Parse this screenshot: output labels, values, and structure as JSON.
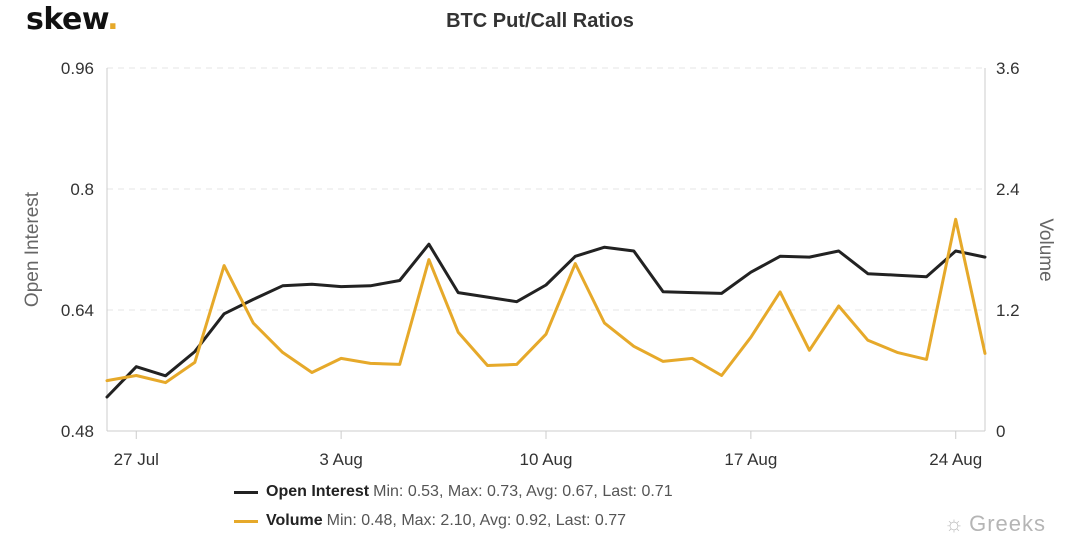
{
  "brand": {
    "logo_text": "skew",
    "logo_dot": ".",
    "watermark_text": "Greeks",
    "watermark_icon": "wechat-icon"
  },
  "colors": {
    "open_interest": "#222222",
    "volume": "#e6a92a",
    "grid": "#e6e6e6",
    "axis_text": "#333333"
  },
  "chart_data": {
    "type": "line",
    "title": "BTC Put/Call Ratios",
    "y_left": {
      "label": "Open Interest",
      "range": [
        0.48,
        0.96
      ],
      "ticks": [
        "0.48",
        "0.64",
        "0.8",
        "0.96"
      ]
    },
    "y_right": {
      "label": "Volume",
      "range": [
        0,
        3.6
      ],
      "ticks": [
        "0",
        "1.2",
        "2.4",
        "3.6"
      ]
    },
    "x_ticks": [
      {
        "label": "27 Jul",
        "day": 1
      },
      {
        "label": "3 Aug",
        "day": 8
      },
      {
        "label": "10 Aug",
        "day": 15
      },
      {
        "label": "17 Aug",
        "day": 22
      },
      {
        "label": "24 Aug",
        "day": 29
      }
    ],
    "x_range": [
      0,
      30
    ],
    "grid": true,
    "legend_position": "bottom",
    "series": [
      {
        "name": "Open Interest",
        "axis": "left",
        "stats": "Min: 0.53, Max: 0.73, Avg: 0.67, Last: 0.71",
        "values": [
          0.525,
          0.565,
          0.553,
          0.585,
          0.635,
          0.654,
          0.672,
          0.674,
          0.671,
          0.672,
          0.679,
          0.727,
          0.663,
          0.657,
          0.651,
          0.673,
          0.711,
          0.723,
          0.718,
          0.664,
          0.663,
          0.662,
          0.69,
          0.711,
          0.71,
          0.718,
          0.688,
          0.686,
          0.684,
          0.718,
          0.71
        ]
      },
      {
        "name": "Volume",
        "axis": "right",
        "stats": "Min: 0.48, Max: 2.10, Avg: 0.92, Last: 0.77",
        "values": [
          0.5,
          0.55,
          0.48,
          0.68,
          1.64,
          1.07,
          0.78,
          0.58,
          0.72,
          0.67,
          0.66,
          1.7,
          0.98,
          0.65,
          0.66,
          0.96,
          1.66,
          1.07,
          0.84,
          0.69,
          0.72,
          0.55,
          0.93,
          1.38,
          0.8,
          1.24,
          0.9,
          0.78,
          0.71,
          2.1,
          0.77
        ]
      }
    ]
  }
}
